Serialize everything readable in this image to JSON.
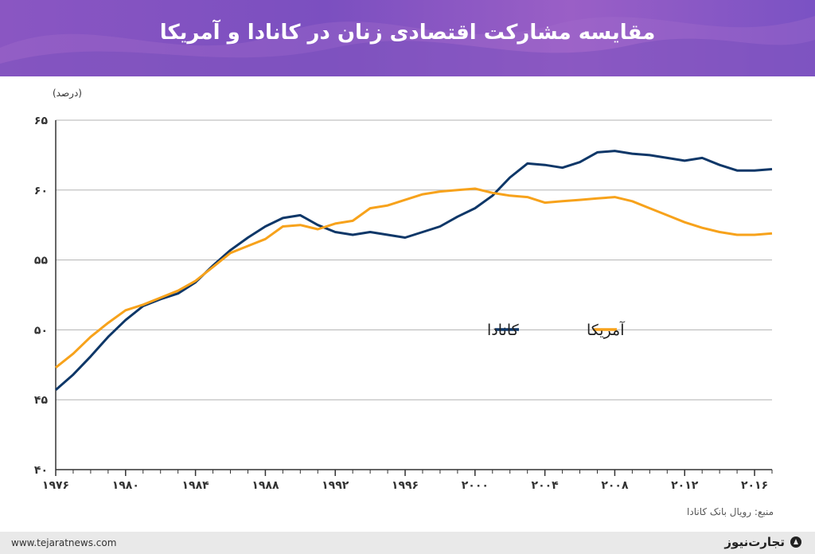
{
  "header": {
    "title": "مقایسه مشارکت اقتصادی زنان در کانادا و آمریکا"
  },
  "footer": {
    "website": "www.tejaratnews.com",
    "brand": "تجارت‌نیوز"
  },
  "source": "منبع: رویال بانک کانادا",
  "colors": {
    "canada": "#0e3768",
    "usa": "#f7a21b",
    "axis": "#333333",
    "grid": "#b3b3b3"
  },
  "chart_data": {
    "type": "line",
    "ylabel": "(درصد)",
    "xlim": [
      1976,
      2017
    ],
    "ylim": [
      40,
      65
    ],
    "y_ticks": [
      40,
      45,
      50,
      55,
      60,
      65
    ],
    "y_tick_labels": [
      "۴۰",
      "۴۵",
      "۵۰",
      "۵۵",
      "۶۰",
      "۶۵"
    ],
    "x_ticks": [
      1976,
      1980,
      1984,
      1988,
      1992,
      1996,
      2000,
      2004,
      2008,
      2012,
      2016
    ],
    "x_tick_labels": [
      "۱۹۷۶",
      "۱۹۸۰",
      "۱۹۸۴",
      "۱۹۸۸",
      "۱۹۹۲",
      "۱۹۹۶",
      "۲۰۰۰",
      "۲۰۰۴",
      "۲۰۰۸",
      "۲۰۱۲",
      "۲۰۱۶"
    ],
    "grid": true,
    "legend_position": "center-right",
    "series": [
      {
        "name": "کانادا",
        "color": "#0e3768",
        "x": [
          1976,
          1977,
          1978,
          1979,
          1980,
          1981,
          1982,
          1983,
          1984,
          1985,
          1986,
          1987,
          1988,
          1989,
          1990,
          1991,
          1992,
          1993,
          1994,
          1995,
          1996,
          1997,
          1998,
          1999,
          2000,
          2001,
          2002,
          2003,
          2004,
          2005,
          2006,
          2007,
          2008,
          2009,
          2010,
          2011,
          2012,
          2013,
          2014,
          2015,
          2016,
          2017
        ],
        "y": [
          45.7,
          46.8,
          48.1,
          49.5,
          50.7,
          51.7,
          52.2,
          52.6,
          53.4,
          54.6,
          55.7,
          56.6,
          57.4,
          58.0,
          58.2,
          57.5,
          57.0,
          56.8,
          57.0,
          56.8,
          56.6,
          57.0,
          57.4,
          58.1,
          58.7,
          59.6,
          60.9,
          61.9,
          61.8,
          61.6,
          62.0,
          62.7,
          62.8,
          62.6,
          62.5,
          62.3,
          62.1,
          62.3,
          61.8,
          61.4,
          61.4,
          61.5
        ]
      },
      {
        "name": "آمریکا",
        "color": "#f7a21b",
        "x": [
          1976,
          1977,
          1978,
          1979,
          1980,
          1981,
          1982,
          1983,
          1984,
          1985,
          1986,
          1987,
          1988,
          1989,
          1990,
          1991,
          1992,
          1993,
          1994,
          1995,
          1996,
          1997,
          1998,
          1999,
          2000,
          2001,
          2002,
          2003,
          2004,
          2005,
          2006,
          2007,
          2008,
          2009,
          2010,
          2011,
          2012,
          2013,
          2014,
          2015,
          2016,
          2017
        ],
        "y": [
          47.3,
          48.3,
          49.5,
          50.5,
          51.4,
          51.8,
          52.3,
          52.8,
          53.5,
          54.5,
          55.5,
          56.0,
          56.5,
          57.4,
          57.5,
          57.2,
          57.6,
          57.8,
          58.7,
          58.9,
          59.3,
          59.7,
          59.9,
          60.0,
          60.1,
          59.8,
          59.6,
          59.5,
          59.1,
          59.2,
          59.3,
          59.4,
          59.5,
          59.2,
          58.7,
          58.2,
          57.7,
          57.3,
          57.0,
          56.8,
          56.8,
          56.9
        ]
      }
    ]
  }
}
